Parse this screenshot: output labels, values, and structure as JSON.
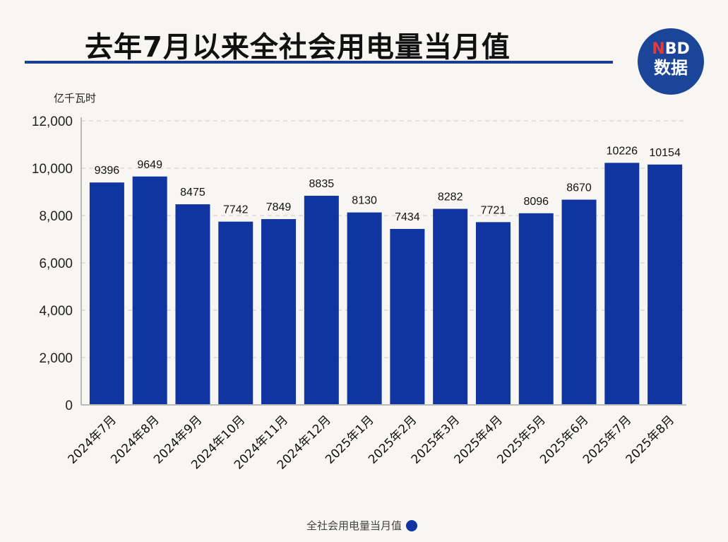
{
  "title": "去年7月以来全社会用电量当月值",
  "logo": {
    "line1_accent": "N",
    "line1_rest": "BD",
    "line2": "数据"
  },
  "chart_data": {
    "type": "bar",
    "title": "去年7月以来全社会用电量当月值",
    "ylabel": "亿千瓦时",
    "xlabel": "",
    "ylim": [
      0,
      12000
    ],
    "yticks": [
      0,
      2000,
      4000,
      6000,
      8000,
      10000,
      12000
    ],
    "ytick_labels": [
      "0",
      "2,000",
      "4,000",
      "6,000",
      "8,000",
      "10,000",
      "12,000"
    ],
    "grid": true,
    "categories": [
      "2024年7月",
      "2024年8月",
      "2024年9月",
      "2024年10月",
      "2024年11月",
      "2024年12月",
      "2025年1月",
      "2025年2月",
      "2025年3月",
      "2025年4月",
      "2025年5月",
      "2025年6月",
      "2025年7月",
      "2025年8月"
    ],
    "series": [
      {
        "name": "全社会用电量当月值",
        "values": [
          9396,
          9649,
          8475,
          7742,
          7849,
          8835,
          8130,
          7434,
          8282,
          7721,
          8096,
          8670,
          10226,
          10154
        ],
        "color": "#1035a0"
      }
    ],
    "legend": "bottom-center"
  }
}
